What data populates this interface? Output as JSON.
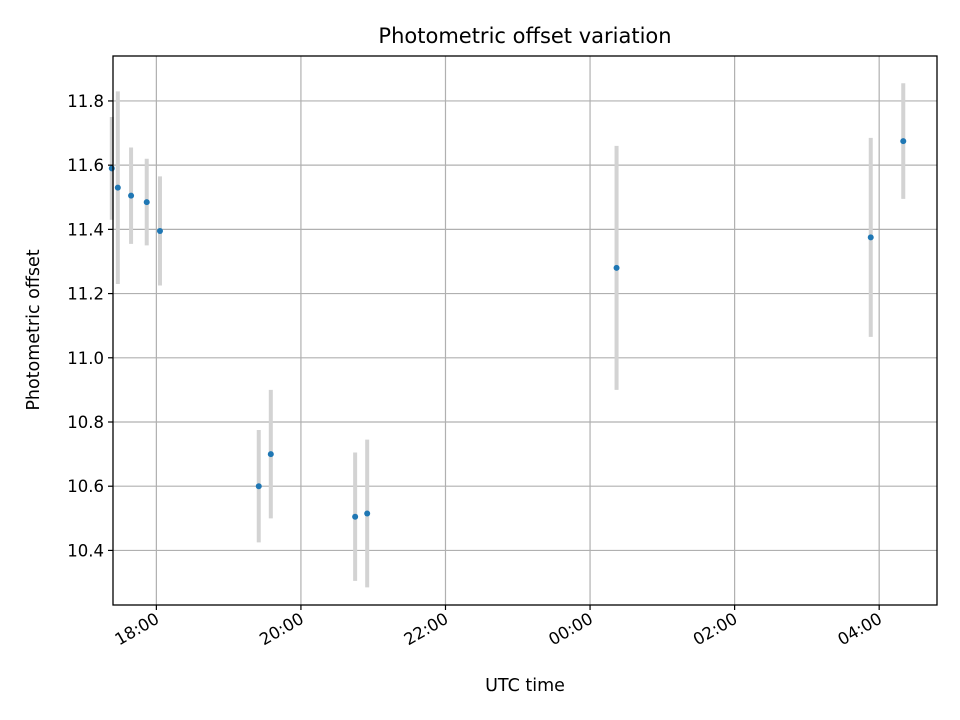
{
  "chart_data": {
    "type": "scatter",
    "title": "Photometric offset variation",
    "xlabel": "UTC time",
    "ylabel": "Photometric offset",
    "grid": true,
    "x_scale": "time",
    "x_range": [
      "17:24",
      "04:48"
    ],
    "x_ticks": [
      "18:00",
      "20:00",
      "22:00",
      "00:00",
      "02:00",
      "04:00"
    ],
    "ylim": [
      10.23,
      11.94
    ],
    "y_ticks": [
      "10.4",
      "10.6",
      "10.8",
      "11.0",
      "11.2",
      "11.4",
      "11.6",
      "11.8"
    ],
    "series": [
      {
        "marker_color": "#1f77b4",
        "errorbar_color": "#d3d3d3",
        "points": [
          {
            "time": "17:23",
            "y": 11.59,
            "err": 0.16
          },
          {
            "time": "17:28",
            "y": 11.53,
            "err": 0.3
          },
          {
            "time": "17:39",
            "y": 11.505,
            "err": 0.15
          },
          {
            "time": "17:52",
            "y": 11.485,
            "err": 0.135
          },
          {
            "time": "18:03",
            "y": 11.395,
            "err": 0.17
          },
          {
            "time": "19:25",
            "y": 10.6,
            "err": 0.175
          },
          {
            "time": "19:35",
            "y": 10.7,
            "err": 0.2
          },
          {
            "time": "20:45",
            "y": 10.505,
            "err": 0.2
          },
          {
            "time": "20:55",
            "y": 10.515,
            "err": 0.23
          },
          {
            "time": "00:22",
            "y": 11.28,
            "err": 0.38
          },
          {
            "time": "03:53",
            "y": 11.375,
            "err": 0.31
          },
          {
            "time": "04:20",
            "y": 11.675,
            "err": 0.18
          }
        ]
      }
    ]
  }
}
